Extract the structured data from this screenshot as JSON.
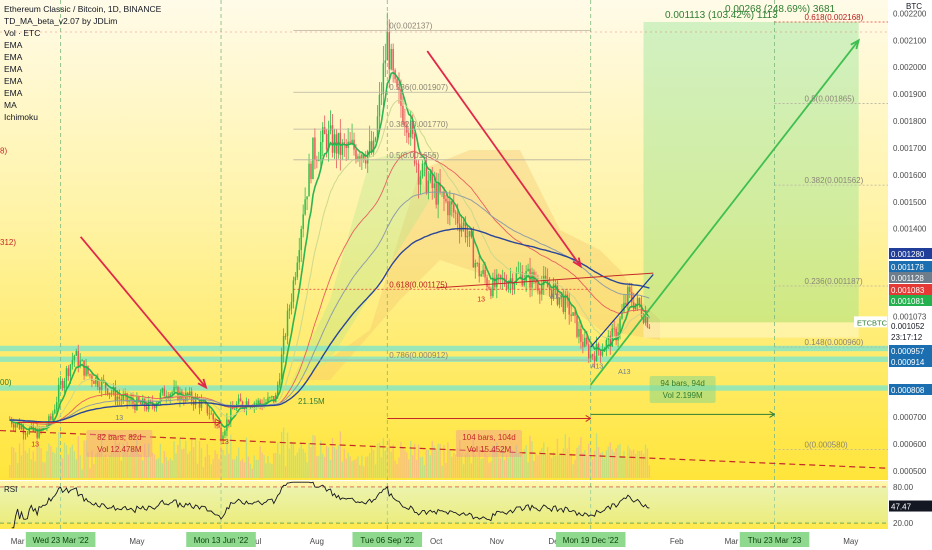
{
  "header": {
    "title": "Ethereum Classic / Bitcoin, 1D, BINANCE",
    "indicators": [
      "TD_MA_beta_v2.07 by JDLim",
      "Vol · ETC",
      "EMA",
      "EMA",
      "EMA",
      "EMA",
      "EMA",
      "MA",
      "Ichimoku"
    ]
  },
  "left_edge_labels": [
    "8)",
    "312)",
    "00)"
  ],
  "colors": {
    "background_top": "#fff9e6",
    "background_bottom": "#ffe94d",
    "candle_green": "#2fbd4a",
    "candle_red": "#e8585b",
    "blue_line": "#1f3d99",
    "band_cyan": "#7fe6c8",
    "price_green": "#22b14c",
    "arrow_red": "#e0294a",
    "fib_red": "#e53935"
  },
  "price_axis": {
    "currency": "BTC",
    "ticks": [
      "0.002200",
      "0.002100",
      "0.002000",
      "0.001900",
      "0.001800",
      "0.001700",
      "0.001600",
      "0.001500",
      "0.001400",
      "0.001073",
      "0.000700",
      "0.000600",
      "0.000500"
    ],
    "badges": [
      {
        "text": "0.001280",
        "bg": "#1f3d99",
        "color": "#ffffff"
      },
      {
        "text": "0.001178",
        "bg": "#1b6fb0",
        "color": "#ffffff"
      },
      {
        "text": "0.001128",
        "bg": "#6d7d8b",
        "color": "#ffffff"
      },
      {
        "text": "0.001083",
        "bg": "#e53935",
        "color": "#ffffff"
      },
      {
        "text": "0.001081",
        "bg": "#22b14c",
        "color": "#ffffff"
      },
      {
        "text": "0.001052",
        "bg": "#ffffff",
        "color": "#131722"
      },
      {
        "text": "23:17:12",
        "bg": "#ffffff",
        "color": "#131722"
      },
      {
        "text": "0.000957",
        "bg": "#1b6fb0",
        "color": "#ffffff"
      },
      {
        "text": "0.000914",
        "bg": "#1b6fb0",
        "color": "#ffffff"
      },
      {
        "text": "0.000808",
        "bg": "#1b6fb0",
        "color": "#ffffff"
      }
    ],
    "symbol_label": "ETCBTC"
  },
  "fib_levels": [
    {
      "label": "0(0.002137)",
      "price": 0.002137
    },
    {
      "label": "0.236(0.001907)",
      "price": 0.001907
    },
    {
      "label": "0.382(0.001770)",
      "price": 0.00177
    },
    {
      "label": "0.5(0.001656)",
      "price": 0.001656
    },
    {
      "label": "0.618(0.001175)",
      "price": 0.001175,
      "highlight": true
    },
    {
      "label": "0.786(0.000912)",
      "price": 0.000912
    }
  ],
  "fib_right": [
    {
      "label": "0.618(0.002168)",
      "price": 0.002168,
      "highlight": true
    },
    {
      "label": "0.5(0.001865)",
      "price": 0.001865
    },
    {
      "label": "0.382(0.001562)",
      "price": 0.001562
    },
    {
      "label": "0.236(0.001187)",
      "price": 0.001187
    },
    {
      "label": "0.148(0.000960)",
      "price": 0.00096
    },
    {
      "label": "0(0.000580)",
      "price": 0.00058
    }
  ],
  "measure_top": {
    "text": "0.001113 (103.42%) 1113",
    "text2": "0.00268 (248.69%) 3681"
  },
  "annotations": [
    {
      "id": "range1",
      "line1": "82 bars, 82d",
      "line2": "Vol 12.478M",
      "theme": "red"
    },
    {
      "id": "range2",
      "line1": "104 bars, 104d",
      "line2": "Vol 15.452M",
      "theme": "red"
    },
    {
      "id": "range3",
      "line1": "94 bars, 94d",
      "line2": "Vol 2.199M",
      "theme": "green"
    },
    {
      "id": "small_vol",
      "line1": "21.15M",
      "theme": "green"
    }
  ],
  "candle_marks": [
    "13",
    "13",
    "13",
    "A13",
    "A13",
    "A13",
    "13"
  ],
  "rsi": {
    "label": "RSI",
    "ticks": [
      "80.00",
      "20.00"
    ],
    "badge": "47.47"
  },
  "time_axis": {
    "ticks": [
      "Mar",
      "May",
      "Jul",
      "Aug",
      "Oct",
      "Nov",
      "Dec",
      "Feb",
      "Mar",
      "May"
    ],
    "highlights": [
      "Wed 23 Mar '22",
      "Mon 13 Jun '22",
      "Tue 06 Sep '22",
      "Mon 19 Dec '22",
      "Thu 23 Mar '23"
    ]
  },
  "chart_data": {
    "type": "candlestick",
    "title": "Ethereum Classic / Bitcoin, 1D, BINANCE",
    "x_range": [
      "2022-02-20",
      "2023-05-20"
    ],
    "ylim": [
      0.00047,
      0.00222
    ],
    "y_unit": "BTC",
    "close_series": [
      [
        "2022-02-25",
        0.00069
      ],
      [
        "2022-03-05",
        0.000655
      ],
      [
        "2022-03-12",
        0.00064
      ],
      [
        "2022-03-18",
        0.00069
      ],
      [
        "2022-03-23",
        0.00082
      ],
      [
        "2022-03-30",
        0.00093
      ],
      [
        "2022-04-06",
        0.00086
      ],
      [
        "2022-04-14",
        0.00082
      ],
      [
        "2022-04-22",
        0.00077
      ],
      [
        "2022-04-30",
        0.00075
      ],
      [
        "2022-05-08",
        0.00074
      ],
      [
        "2022-05-16",
        0.0008
      ],
      [
        "2022-05-24",
        0.00078
      ],
      [
        "2022-06-01",
        0.00076
      ],
      [
        "2022-06-07",
        0.00072
      ],
      [
        "2022-06-13",
        0.00064
      ],
      [
        "2022-06-20",
        0.00074
      ],
      [
        "2022-06-27",
        0.00076
      ],
      [
        "2022-07-04",
        0.00075
      ],
      [
        "2022-07-11",
        0.00077
      ],
      [
        "2022-07-16",
        0.00102
      ],
      [
        "2022-07-20",
        0.0012
      ],
      [
        "2022-07-25",
        0.00148
      ],
      [
        "2022-07-30",
        0.00168
      ],
      [
        "2022-08-06",
        0.00174
      ],
      [
        "2022-08-14",
        0.00169
      ],
      [
        "2022-08-22",
        0.0017
      ],
      [
        "2022-08-30",
        0.00168
      ],
      [
        "2022-09-06",
        0.0021
      ],
      [
        "2022-09-10",
        0.0019
      ],
      [
        "2022-09-16",
        0.00182
      ],
      [
        "2022-09-22",
        0.00162
      ],
      [
        "2022-09-30",
        0.00154
      ],
      [
        "2022-10-08",
        0.00148
      ],
      [
        "2022-10-16",
        0.0014
      ],
      [
        "2022-10-22",
        0.00125
      ],
      [
        "2022-10-30",
        0.00118
      ],
      [
        "2022-11-06",
        0.00121
      ],
      [
        "2022-11-14",
        0.00123
      ],
      [
        "2022-11-22",
        0.0012
      ],
      [
        "2022-11-30",
        0.00117
      ],
      [
        "2022-12-08",
        0.0011
      ],
      [
        "2022-12-14",
        0.00099
      ],
      [
        "2022-12-19",
        0.00093
      ],
      [
        "2022-12-25",
        0.00096
      ],
      [
        "2023-01-01",
        0.00101
      ],
      [
        "2023-01-07",
        0.00115
      ],
      [
        "2023-01-13",
        0.00111
      ],
      [
        "2023-01-18",
        0.001052
      ]
    ],
    "lines": [
      {
        "name": "EMA (blue)",
        "color": "#1f3d99"
      },
      {
        "name": "EMA (red)",
        "color": "#e8585b"
      },
      {
        "name": "EMA (grey)",
        "color": "#8c9aa8"
      }
    ],
    "projection": {
      "from": [
        "2023-01-18",
        0.0007
      ],
      "to": [
        "2023-05-05",
        0.0021
      ]
    },
    "grid": false,
    "legend_position": "top-left"
  }
}
